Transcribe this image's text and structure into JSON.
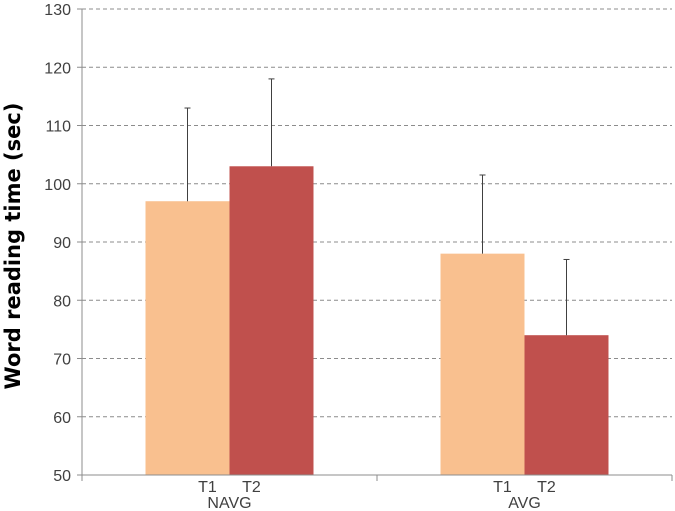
{
  "chart_data": {
    "type": "bar",
    "title": "",
    "xlabel": "",
    "ylabel": "Word reading time (sec)",
    "ylim": [
      50,
      130
    ],
    "yticks": [
      50,
      60,
      70,
      80,
      90,
      100,
      110,
      120,
      130
    ],
    "grid": true,
    "categories": [
      "NAVG",
      "AVG"
    ],
    "series": [
      {
        "name": "T1",
        "color": "#f9c08f",
        "values": [
          97,
          88
        ],
        "error": [
          16,
          13.5
        ]
      },
      {
        "name": "T2",
        "color": "#c0504d",
        "values": [
          103,
          74
        ],
        "error": [
          15,
          13
        ]
      }
    ]
  }
}
